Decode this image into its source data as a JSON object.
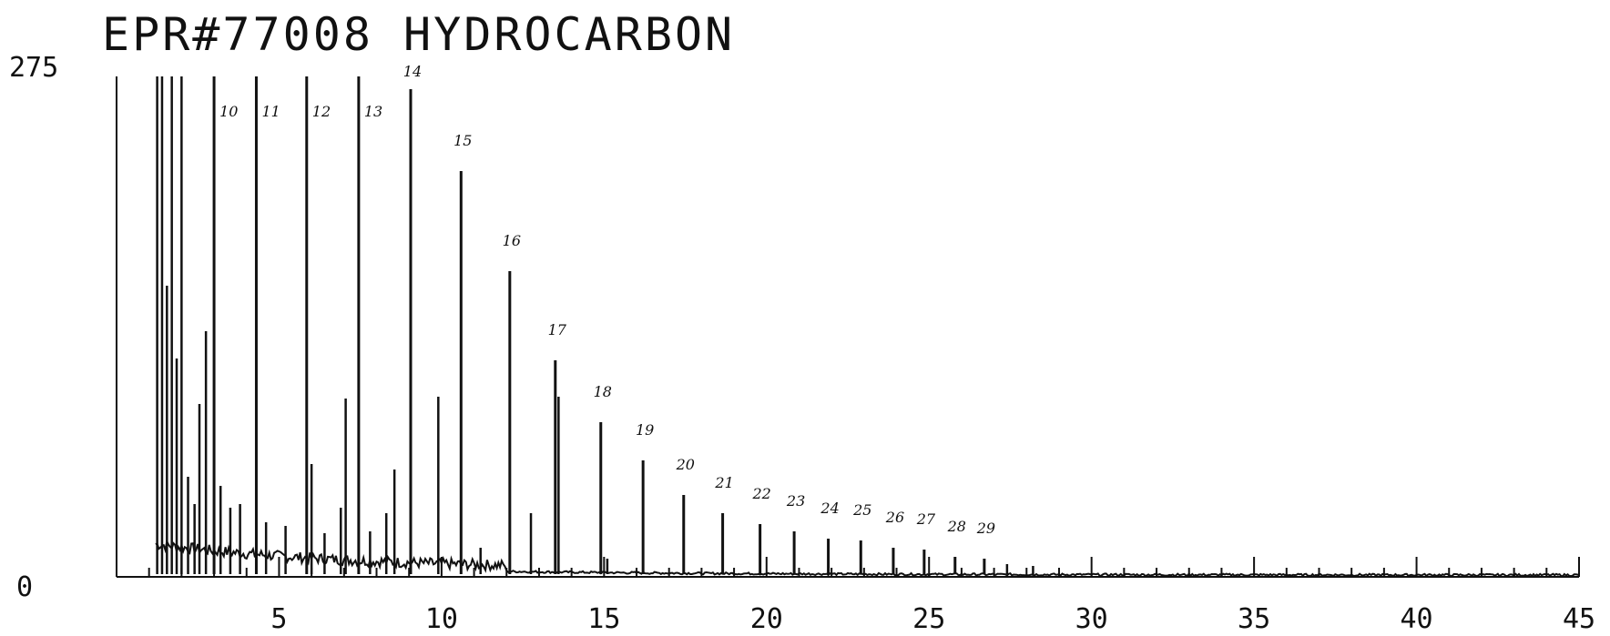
{
  "chart_data": {
    "type": "line",
    "title": "EPR#77008   HYDROCARBON",
    "xlabel": "",
    "ylabel": "",
    "xlim": [
      0,
      45
    ],
    "ylim": [
      0,
      275
    ],
    "x_ticks": [
      "5",
      "10",
      "15",
      "20",
      "25",
      "30",
      "35",
      "40",
      "45"
    ],
    "y_ticks": [
      "0",
      "275"
    ],
    "grid": false,
    "line_color": "#111111",
    "peaks": [
      {
        "label": "10",
        "rt": 3.0,
        "height": 275
      },
      {
        "label": "11",
        "rt": 4.3,
        "height": 275
      },
      {
        "label": "12",
        "rt": 5.85,
        "height": 275
      },
      {
        "label": "13",
        "rt": 7.45,
        "height": 275
      },
      {
        "label": "14",
        "rt": 9.05,
        "height": 268
      },
      {
        "label": "15",
        "rt": 10.6,
        "height": 223
      },
      {
        "label": "16",
        "rt": 12.1,
        "height": 168
      },
      {
        "label": "17",
        "rt": 13.5,
        "height": 119
      },
      {
        "label": "18",
        "rt": 14.9,
        "height": 85
      },
      {
        "label": "19",
        "rt": 16.2,
        "height": 64
      },
      {
        "label": "20",
        "rt": 17.45,
        "height": 45
      },
      {
        "label": "21",
        "rt": 18.65,
        "height": 35
      },
      {
        "label": "22",
        "rt": 19.8,
        "height": 29
      },
      {
        "label": "23",
        "rt": 20.85,
        "height": 25
      },
      {
        "label": "24",
        "rt": 21.9,
        "height": 21
      },
      {
        "label": "25",
        "rt": 22.9,
        "height": 20
      },
      {
        "label": "26",
        "rt": 23.9,
        "height": 16
      },
      {
        "label": "27",
        "rt": 24.85,
        "height": 15
      },
      {
        "label": "28",
        "rt": 25.8,
        "height": 11
      },
      {
        "label": "29",
        "rt": 26.7,
        "height": 10
      }
    ],
    "minor_peaks": [
      {
        "rt": 1.25,
        "height": 275
      },
      {
        "rt": 1.4,
        "height": 275
      },
      {
        "rt": 1.55,
        "height": 160
      },
      {
        "rt": 1.7,
        "height": 275
      },
      {
        "rt": 1.85,
        "height": 120
      },
      {
        "rt": 2.0,
        "height": 275
      },
      {
        "rt": 2.2,
        "height": 55
      },
      {
        "rt": 2.4,
        "height": 40
      },
      {
        "rt": 2.55,
        "height": 95
      },
      {
        "rt": 2.75,
        "height": 135
      },
      {
        "rt": 3.2,
        "height": 50
      },
      {
        "rt": 3.5,
        "height": 38
      },
      {
        "rt": 3.8,
        "height": 40
      },
      {
        "rt": 4.6,
        "height": 30
      },
      {
        "rt": 5.2,
        "height": 28
      },
      {
        "rt": 6.0,
        "height": 62
      },
      {
        "rt": 6.4,
        "height": 24
      },
      {
        "rt": 6.9,
        "height": 38
      },
      {
        "rt": 7.05,
        "height": 98
      },
      {
        "rt": 7.8,
        "height": 25
      },
      {
        "rt": 8.3,
        "height": 35
      },
      {
        "rt": 8.55,
        "height": 59
      },
      {
        "rt": 9.9,
        "height": 99
      },
      {
        "rt": 11.2,
        "height": 16
      },
      {
        "rt": 12.75,
        "height": 35
      },
      {
        "rt": 13.6,
        "height": 99
      },
      {
        "rt": 15.1,
        "height": 10
      },
      {
        "rt": 27.4,
        "height": 7
      },
      {
        "rt": 28.2,
        "height": 6
      }
    ]
  }
}
